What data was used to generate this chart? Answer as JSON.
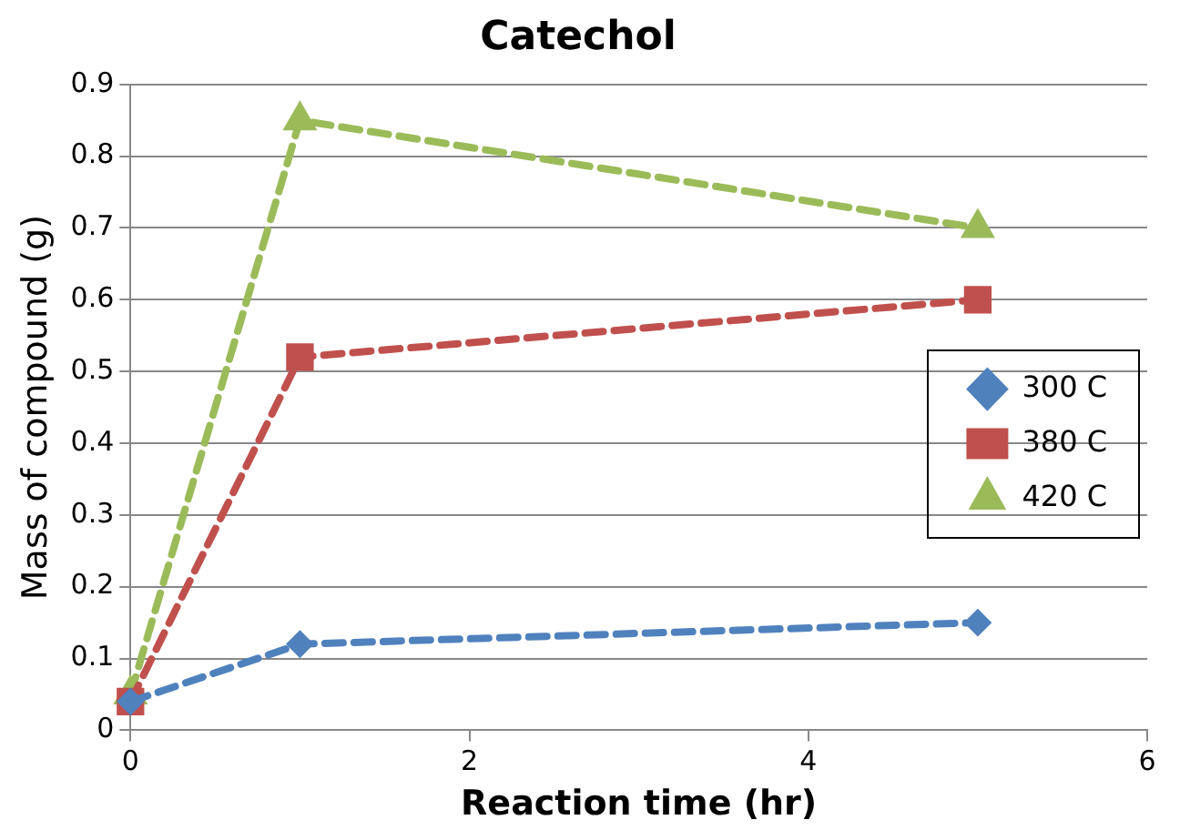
{
  "chart_data": {
    "type": "line",
    "title": "Catechol",
    "xlabel": "Reaction time (hr)",
    "ylabel": "Mass of compound (g)",
    "x": [
      0,
      1,
      5
    ],
    "series": [
      {
        "name": "300 C",
        "color": "#4f81bd",
        "values": [
          0.04,
          0.12,
          0.15
        ],
        "marker": "diamond"
      },
      {
        "name": "380 C",
        "color": "#c0504d",
        "values": [
          0.04,
          0.52,
          0.6
        ],
        "marker": "square"
      },
      {
        "name": "420 C",
        "color": "#9bbb59",
        "values": [
          0.05,
          0.85,
          0.7
        ],
        "marker": "triangle"
      }
    ],
    "xlim": [
      0,
      6
    ],
    "xticks": [
      0,
      2,
      4,
      6
    ],
    "ylim": [
      0,
      0.9
    ],
    "yticks": [
      0,
      0.1,
      0.2,
      0.3,
      0.4,
      0.5,
      0.6,
      0.7,
      0.8,
      0.9
    ],
    "grid": "y",
    "legend": "right",
    "line_style": "dashed"
  }
}
